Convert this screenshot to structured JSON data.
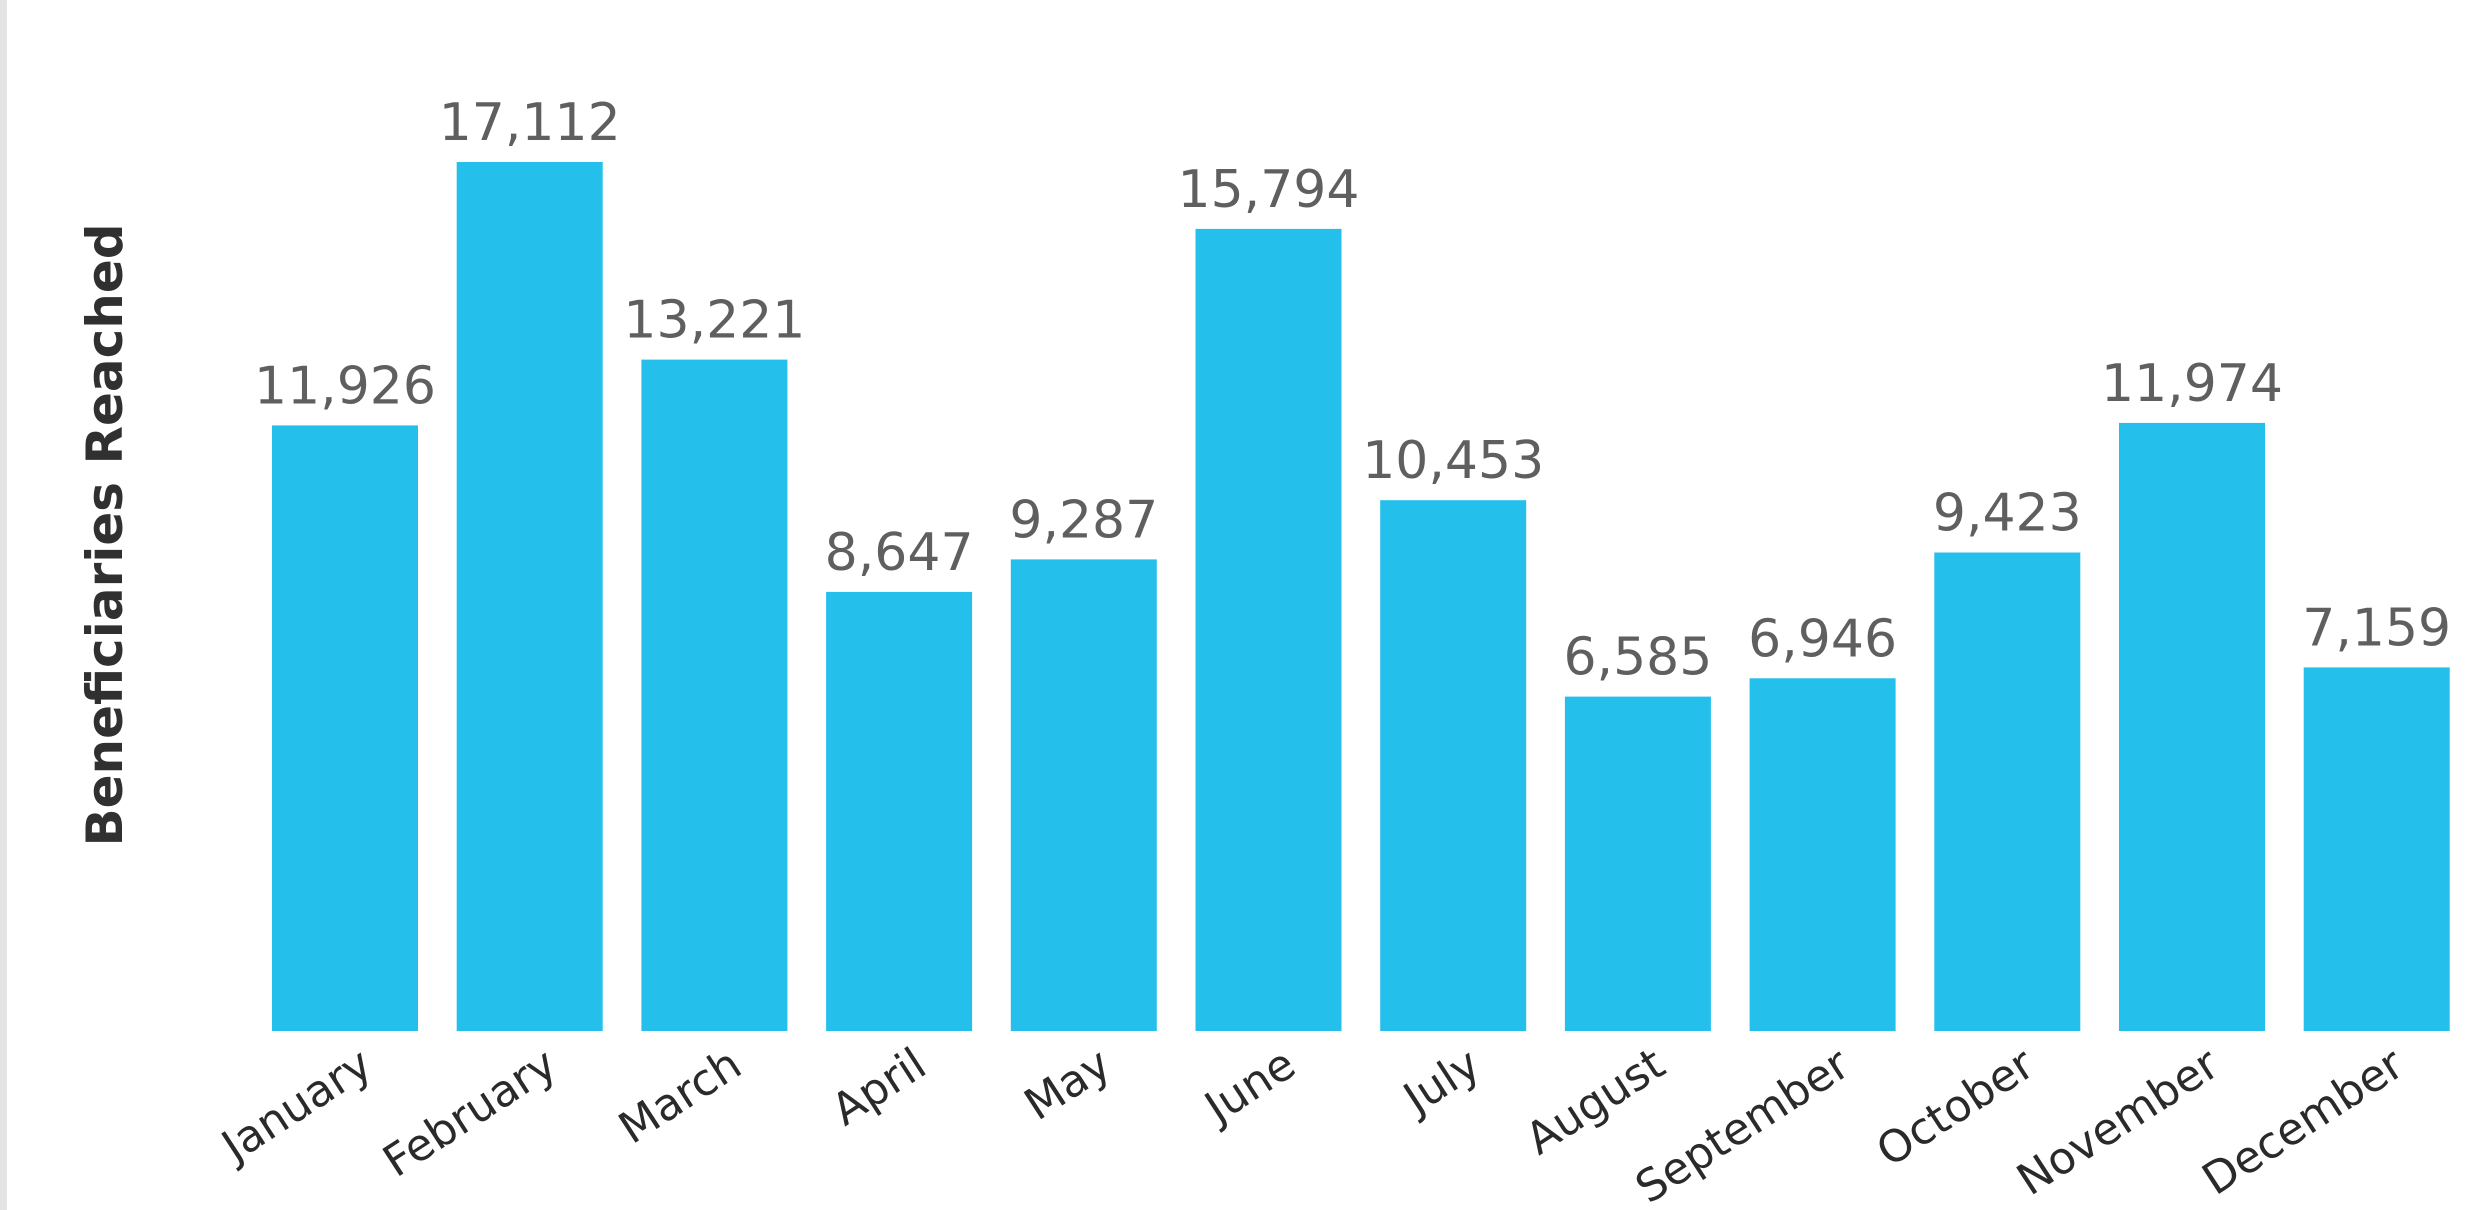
{
  "chart_data": {
    "type": "bar",
    "title": "",
    "xlabel": "",
    "ylabel": "Beneficiaries Reached",
    "categories": [
      "January",
      "February",
      "March",
      "April",
      "May",
      "June",
      "July",
      "August",
      "September",
      "October",
      "November",
      "December"
    ],
    "values": [
      11926,
      17112,
      13221,
      8647,
      9287,
      15794,
      10453,
      6585,
      6946,
      9423,
      11974,
      7159
    ],
    "value_labels": [
      "11,926",
      "17,112",
      "13,221",
      "8,647",
      "9,287",
      "15,794",
      "10,453",
      "6,585",
      "6,946",
      "9,423",
      "11,974",
      "7,159"
    ],
    "ylim": [
      0,
      17112
    ],
    "grid": false,
    "legend": "none",
    "colors": {
      "bar": "#25bfec",
      "value_label": "#5f5f5f",
      "axis_text": "#2a2a2a"
    }
  }
}
